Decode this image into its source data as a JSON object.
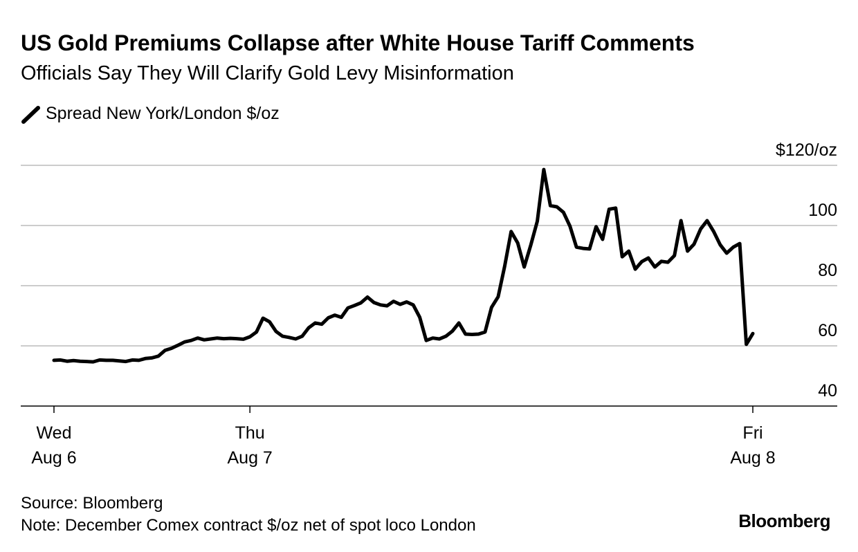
{
  "chart_data": {
    "type": "line",
    "title": "US Gold Premiums Collapse after White House Tariff Comments",
    "subtitle": "Officials Say They Will Clarify Gold Levy Misinformation",
    "source": "Source: Bloomberg",
    "note": "Note: December Comex contract $/oz net of spot loco London",
    "brand": "Bloomberg",
    "categories": [
      "Wed\nAug 6",
      null,
      null,
      null,
      null,
      null,
      null,
      null,
      null,
      null,
      null,
      null,
      null,
      null,
      null,
      null,
      null,
      null,
      null,
      null,
      null,
      null,
      null,
      null,
      null,
      null,
      null,
      null,
      null,
      null,
      "Thu\nAug 7",
      null,
      null,
      null,
      null,
      null,
      null,
      null,
      null,
      null,
      null,
      null,
      null,
      null,
      null,
      null,
      null,
      null,
      null,
      null,
      null,
      null,
      null,
      null,
      null,
      null,
      null,
      null,
      null,
      null,
      null,
      null,
      null,
      null,
      null,
      null,
      null,
      null,
      null,
      null,
      null,
      null,
      null,
      null,
      null,
      null,
      null,
      null,
      null,
      null,
      null,
      null,
      null,
      null,
      null,
      null,
      null,
      null,
      null,
      null,
      null,
      null,
      null,
      null,
      null,
      null,
      null,
      null,
      null,
      null,
      null,
      null,
      null,
      null,
      null,
      null,
      null,
      "Fri\nAug 8"
    ],
    "series": [
      {
        "name": "Spread New York/London $/oz",
        "color": "#000000",
        "values": [
          55.2,
          55.3,
          54.9,
          55.1,
          54.9,
          54.8,
          54.7,
          55.3,
          55.2,
          55.2,
          55.0,
          54.8,
          55.3,
          55.2,
          55.8,
          56.0,
          56.6,
          58.5,
          59.2,
          60.2,
          61.3,
          61.8,
          62.6,
          62.0,
          62.3,
          62.6,
          62.4,
          62.5,
          62.4,
          62.2,
          63.0,
          64.6,
          69.2,
          68.0,
          64.8,
          63.2,
          62.8,
          62.3,
          63.2,
          66.0,
          67.6,
          67.2,
          69.3,
          70.2,
          69.5,
          72.6,
          73.4,
          74.3,
          76.2,
          74.4,
          73.6,
          73.3,
          74.8,
          73.8,
          74.6,
          73.6,
          69.5,
          61.8,
          62.6,
          62.3,
          63.2,
          64.9,
          67.6,
          63.9,
          63.8,
          63.9,
          64.6,
          72.8,
          76.3,
          86.4,
          98.0,
          94.2,
          86.2,
          93.5,
          101.4,
          118.6,
          106.6,
          106.2,
          104.4,
          99.8,
          92.8,
          92.4,
          92.2,
          99.6,
          95.4,
          105.4,
          105.8,
          89.6,
          91.5,
          85.5,
          88.0,
          89.2,
          86.2,
          88.1,
          87.8,
          90.0,
          101.6,
          91.5,
          93.8,
          98.8,
          101.6,
          98.0,
          93.6,
          90.8,
          92.8,
          94.0,
          60.5,
          64.1
        ]
      }
    ],
    "ylim": [
      40,
      120
    ],
    "yticks": [
      40,
      60,
      80,
      100,
      {
        "value": 120,
        "label": "$120/oz"
      }
    ],
    "grid": true
  }
}
